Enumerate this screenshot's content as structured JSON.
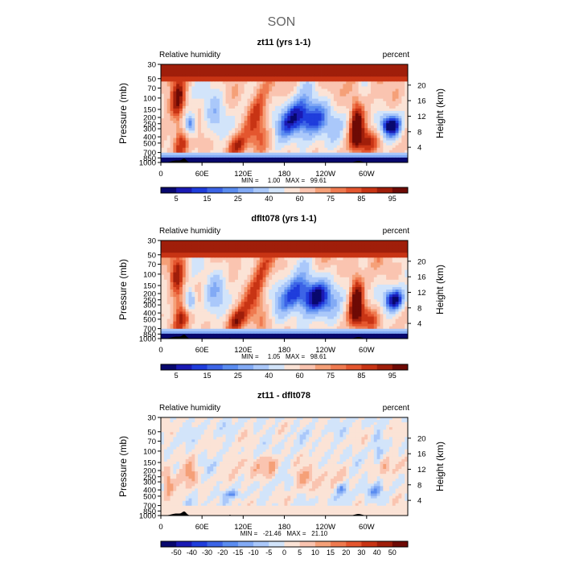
{
  "page_title": "SON",
  "chart_data": [
    {
      "type": "heatmap",
      "title": "zt11 (yrs 1-1)",
      "subtitle_left": "Relative humidity",
      "subtitle_right": "percent",
      "ylabel": "Pressure (mb)",
      "ylabel_right": "Height (km)",
      "x_ticks": [
        "0",
        "60E",
        "120E",
        "180",
        "120W",
        "60W"
      ],
      "y_ticks": [
        "1000",
        "850",
        "700",
        "500",
        "400",
        "300",
        "250",
        "200",
        "150",
        "100",
        "70",
        "50",
        "30"
      ],
      "y_ticks_right": [
        "20",
        "16",
        "12",
        "8",
        "4"
      ],
      "stats": "MIN =     1.00   MAX =   99.61",
      "colorbar_levels": [
        5,
        10,
        15,
        20,
        25,
        30,
        40,
        50,
        60,
        70,
        75,
        80,
        85,
        90,
        95
      ],
      "colorbar_labels": [
        "5",
        "15",
        "25",
        "40",
        "60",
        "75",
        "85",
        "95"
      ],
      "ylim": [
        1000,
        30
      ]
    },
    {
      "type": "heatmap",
      "title": "dflt078 (yrs 1-1)",
      "subtitle_left": "Relative humidity",
      "subtitle_right": "percent",
      "ylabel": "Pressure (mb)",
      "ylabel_right": "Height (km)",
      "x_ticks": [
        "0",
        "60E",
        "120E",
        "180",
        "120W",
        "60W"
      ],
      "y_ticks": [
        "1000",
        "850",
        "700",
        "500",
        "400",
        "300",
        "250",
        "200",
        "150",
        "100",
        "70",
        "50",
        "30"
      ],
      "y_ticks_right": [
        "20",
        "16",
        "12",
        "8",
        "4"
      ],
      "stats": "MIN =     1.05   MAX =   98.61",
      "colorbar_levels": [
        5,
        10,
        15,
        20,
        25,
        30,
        40,
        50,
        60,
        70,
        75,
        80,
        85,
        90,
        95
      ],
      "colorbar_labels": [
        "5",
        "15",
        "25",
        "40",
        "60",
        "75",
        "85",
        "95"
      ],
      "ylim": [
        1000,
        30
      ]
    },
    {
      "type": "heatmap",
      "title": "zt11 - dflt078",
      "subtitle_left": "Relative humidity",
      "subtitle_right": "percent",
      "ylabel": "Pressure (mb)",
      "ylabel_right": "Height (km)",
      "x_ticks": [
        "0",
        "60E",
        "120E",
        "180",
        "120W",
        "60W"
      ],
      "y_ticks": [
        "1000",
        "850",
        "700",
        "500",
        "400",
        "300",
        "250",
        "200",
        "150",
        "100",
        "70",
        "50",
        "30"
      ],
      "y_ticks_right": [
        "20",
        "16",
        "12",
        "8",
        "4"
      ],
      "stats": "MIN =   -21.46   MAX =   21.10",
      "colorbar_levels": [
        -50,
        -40,
        -30,
        -20,
        -15,
        -10,
        -5,
        0,
        5,
        10,
        15,
        20,
        30,
        40,
        50
      ],
      "colorbar_labels": [
        "-50",
        "-40",
        "-30",
        "-20",
        "-15",
        "-10",
        "-5",
        "0",
        "5",
        "10",
        "15",
        "20",
        "30",
        "40",
        "50"
      ],
      "ylim": [
        1000,
        30
      ]
    }
  ],
  "colors": {
    "palette": [
      "#08086e",
      "#1a1ab4",
      "#1f3ddc",
      "#3c64e6",
      "#5a8cf0",
      "#82aaf5",
      "#aac8fa",
      "#d2e4fa",
      "#fbe3d6",
      "#fac4b0",
      "#f5a078",
      "#ef7a50",
      "#e4562f",
      "#c83414",
      "#a01e0a",
      "#6e0a05"
    ]
  }
}
